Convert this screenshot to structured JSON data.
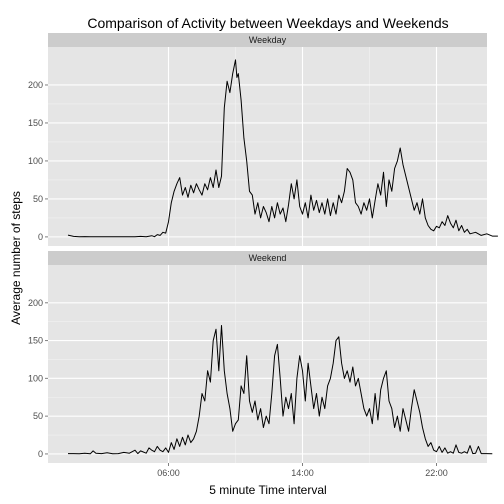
{
  "chart_data": {
    "type": "line",
    "title": "Comparison of Activity between Weekdays and Weekends",
    "xlabel": "5 minute Time interval",
    "ylabel": "Average number of steps",
    "x_unit": "minutes since midnight",
    "xlim": [
      0,
      1440
    ],
    "ylim": [
      -12,
      250
    ],
    "x_ticks": [
      {
        "value": 360,
        "label": "06:00"
      },
      {
        "value": 840,
        "label": "14:00"
      },
      {
        "value": 1320,
        "label": "22:00"
      }
    ],
    "y_ticks": [
      0,
      50,
      100,
      150,
      200
    ],
    "grid": true,
    "colors": {
      "panel_bg": "#e5e5e5",
      "grid_major": "#ffffff",
      "grid_minor": "#f2f2f2",
      "strip_bg": "#cccccc",
      "line": "#000000"
    },
    "panels": [
      {
        "strip": "Weekday",
        "points": [
          [
            0,
            2.3
          ],
          [
            20,
            0.6
          ],
          [
            40,
            0.1
          ],
          [
            60,
            0.4
          ],
          [
            80,
            0.1
          ],
          [
            100,
            0.2
          ],
          [
            120,
            0.1
          ],
          [
            140,
            0.2
          ],
          [
            160,
            0.3
          ],
          [
            180,
            0.1
          ],
          [
            200,
            0.3
          ],
          [
            220,
            0.1
          ],
          [
            240,
            0.2
          ],
          [
            260,
            0.6
          ],
          [
            280,
            0.3
          ],
          [
            300,
            1.5
          ],
          [
            310,
            0.3
          ],
          [
            320,
            3
          ],
          [
            330,
            2
          ],
          [
            340,
            6
          ],
          [
            350,
            5
          ],
          [
            360,
            20
          ],
          [
            370,
            45
          ],
          [
            380,
            60
          ],
          [
            390,
            70
          ],
          [
            400,
            78
          ],
          [
            410,
            55
          ],
          [
            420,
            65
          ],
          [
            430,
            52
          ],
          [
            440,
            68
          ],
          [
            450,
            58
          ],
          [
            460,
            70
          ],
          [
            470,
            62
          ],
          [
            480,
            55
          ],
          [
            490,
            70
          ],
          [
            500,
            62
          ],
          [
            510,
            78
          ],
          [
            520,
            65
          ],
          [
            530,
            88
          ],
          [
            540,
            65
          ],
          [
            550,
            80
          ],
          [
            560,
            170
          ],
          [
            570,
            205
          ],
          [
            580,
            190
          ],
          [
            590,
            215
          ],
          [
            600,
            233
          ],
          [
            605,
            210
          ],
          [
            610,
            215
          ],
          [
            620,
            180
          ],
          [
            630,
            130
          ],
          [
            640,
            100
          ],
          [
            650,
            60
          ],
          [
            660,
            55
          ],
          [
            670,
            30
          ],
          [
            680,
            45
          ],
          [
            690,
            25
          ],
          [
            700,
            40
          ],
          [
            710,
            32
          ],
          [
            720,
            20
          ],
          [
            730,
            40
          ],
          [
            740,
            25
          ],
          [
            750,
            45
          ],
          [
            760,
            30
          ],
          [
            770,
            38
          ],
          [
            780,
            20
          ],
          [
            790,
            42
          ],
          [
            800,
            70
          ],
          [
            810,
            50
          ],
          [
            820,
            75
          ],
          [
            830,
            40
          ],
          [
            840,
            30
          ],
          [
            850,
            45
          ],
          [
            860,
            25
          ],
          [
            870,
            55
          ],
          [
            880,
            35
          ],
          [
            890,
            48
          ],
          [
            900,
            32
          ],
          [
            910,
            45
          ],
          [
            920,
            30
          ],
          [
            930,
            50
          ],
          [
            940,
            28
          ],
          [
            950,
            45
          ],
          [
            960,
            30
          ],
          [
            970,
            55
          ],
          [
            980,
            45
          ],
          [
            990,
            60
          ],
          [
            1000,
            90
          ],
          [
            1010,
            85
          ],
          [
            1020,
            75
          ],
          [
            1030,
            45
          ],
          [
            1040,
            40
          ],
          [
            1050,
            30
          ],
          [
            1060,
            45
          ],
          [
            1070,
            35
          ],
          [
            1080,
            50
          ],
          [
            1090,
            25
          ],
          [
            1100,
            48
          ],
          [
            1110,
            70
          ],
          [
            1120,
            55
          ],
          [
            1130,
            85
          ],
          [
            1140,
            40
          ],
          [
            1150,
            75
          ],
          [
            1160,
            60
          ],
          [
            1170,
            90
          ],
          [
            1180,
            100
          ],
          [
            1190,
            117
          ],
          [
            1200,
            95
          ],
          [
            1210,
            80
          ],
          [
            1220,
            65
          ],
          [
            1230,
            50
          ],
          [
            1240,
            35
          ],
          [
            1250,
            45
          ],
          [
            1260,
            30
          ],
          [
            1270,
            50
          ],
          [
            1280,
            25
          ],
          [
            1290,
            15
          ],
          [
            1300,
            10
          ],
          [
            1310,
            8
          ],
          [
            1320,
            14
          ],
          [
            1330,
            12
          ],
          [
            1340,
            20
          ],
          [
            1350,
            15
          ],
          [
            1360,
            28
          ],
          [
            1370,
            18
          ],
          [
            1380,
            12
          ],
          [
            1390,
            22
          ],
          [
            1400,
            8
          ],
          [
            1410,
            15
          ],
          [
            1420,
            6
          ],
          [
            1430,
            10
          ],
          [
            1440,
            4
          ],
          [
            1460,
            6
          ],
          [
            1480,
            2
          ],
          [
            1500,
            4
          ],
          [
            1520,
            1
          ],
          [
            1540,
            1
          ]
        ]
      },
      {
        "strip": "Weekend",
        "points": [
          [
            0,
            0.5
          ],
          [
            20,
            0.4
          ],
          [
            40,
            0.3
          ],
          [
            60,
            1
          ],
          [
            80,
            0.2
          ],
          [
            90,
            4
          ],
          [
            100,
            1
          ],
          [
            120,
            0.5
          ],
          [
            140,
            1.5
          ],
          [
            160,
            0.3
          ],
          [
            180,
            0.5
          ],
          [
            200,
            2
          ],
          [
            220,
            1
          ],
          [
            240,
            5
          ],
          [
            250,
            0.5
          ],
          [
            260,
            4
          ],
          [
            280,
            1
          ],
          [
            290,
            8
          ],
          [
            300,
            5
          ],
          [
            310,
            3
          ],
          [
            320,
            10
          ],
          [
            330,
            5
          ],
          [
            340,
            3
          ],
          [
            350,
            8
          ],
          [
            360,
            2
          ],
          [
            370,
            15
          ],
          [
            380,
            6
          ],
          [
            390,
            20
          ],
          [
            400,
            10
          ],
          [
            410,
            22
          ],
          [
            420,
            12
          ],
          [
            430,
            25
          ],
          [
            440,
            15
          ],
          [
            450,
            20
          ],
          [
            460,
            30
          ],
          [
            470,
            50
          ],
          [
            480,
            80
          ],
          [
            490,
            70
          ],
          [
            500,
            110
          ],
          [
            510,
            95
          ],
          [
            520,
            150
          ],
          [
            530,
            165
          ],
          [
            540,
            110
          ],
          [
            550,
            170
          ],
          [
            560,
            110
          ],
          [
            570,
            80
          ],
          [
            580,
            60
          ],
          [
            590,
            30
          ],
          [
            600,
            40
          ],
          [
            610,
            45
          ],
          [
            620,
            90
          ],
          [
            630,
            80
          ],
          [
            640,
            130
          ],
          [
            650,
            70
          ],
          [
            660,
            55
          ],
          [
            670,
            70
          ],
          [
            680,
            45
          ],
          [
            690,
            60
          ],
          [
            700,
            35
          ],
          [
            710,
            50
          ],
          [
            720,
            40
          ],
          [
            730,
            80
          ],
          [
            740,
            130
          ],
          [
            750,
            145
          ],
          [
            760,
            100
          ],
          [
            770,
            50
          ],
          [
            780,
            75
          ],
          [
            790,
            60
          ],
          [
            800,
            80
          ],
          [
            810,
            40
          ],
          [
            820,
            100
          ],
          [
            830,
            130
          ],
          [
            840,
            110
          ],
          [
            850,
            70
          ],
          [
            860,
            120
          ],
          [
            870,
            90
          ],
          [
            880,
            60
          ],
          [
            890,
            80
          ],
          [
            900,
            50
          ],
          [
            910,
            75
          ],
          [
            920,
            60
          ],
          [
            930,
            90
          ],
          [
            940,
            100
          ],
          [
            950,
            120
          ],
          [
            960,
            150
          ],
          [
            970,
            155
          ],
          [
            980,
            120
          ],
          [
            990,
            100
          ],
          [
            1000,
            110
          ],
          [
            1010,
            95
          ],
          [
            1020,
            115
          ],
          [
            1030,
            90
          ],
          [
            1040,
            100
          ],
          [
            1050,
            80
          ],
          [
            1060,
            60
          ],
          [
            1070,
            50
          ],
          [
            1080,
            60
          ],
          [
            1090,
            40
          ],
          [
            1100,
            80
          ],
          [
            1110,
            45
          ],
          [
            1120,
            85
          ],
          [
            1130,
            100
          ],
          [
            1140,
            110
          ],
          [
            1150,
            70
          ],
          [
            1160,
            60
          ],
          [
            1170,
            35
          ],
          [
            1180,
            50
          ],
          [
            1190,
            30
          ],
          [
            1200,
            60
          ],
          [
            1210,
            45
          ],
          [
            1220,
            30
          ],
          [
            1230,
            60
          ],
          [
            1240,
            85
          ],
          [
            1250,
            70
          ],
          [
            1260,
            55
          ],
          [
            1270,
            35
          ],
          [
            1280,
            20
          ],
          [
            1290,
            10
          ],
          [
            1300,
            15
          ],
          [
            1310,
            5
          ],
          [
            1320,
            3
          ],
          [
            1330,
            10
          ],
          [
            1340,
            2
          ],
          [
            1350,
            8
          ],
          [
            1360,
            1
          ],
          [
            1370,
            3
          ],
          [
            1380,
            1
          ],
          [
            1390,
            12
          ],
          [
            1400,
            2
          ],
          [
            1410,
            1
          ],
          [
            1420,
            3
          ],
          [
            1430,
            1
          ],
          [
            1440,
            11
          ],
          [
            1450,
            0.5
          ],
          [
            1460,
            1
          ],
          [
            1470,
            10
          ],
          [
            1480,
            0.5
          ],
          [
            1500,
            0.5
          ],
          [
            1520,
            0.2
          ]
        ]
      }
    ]
  }
}
